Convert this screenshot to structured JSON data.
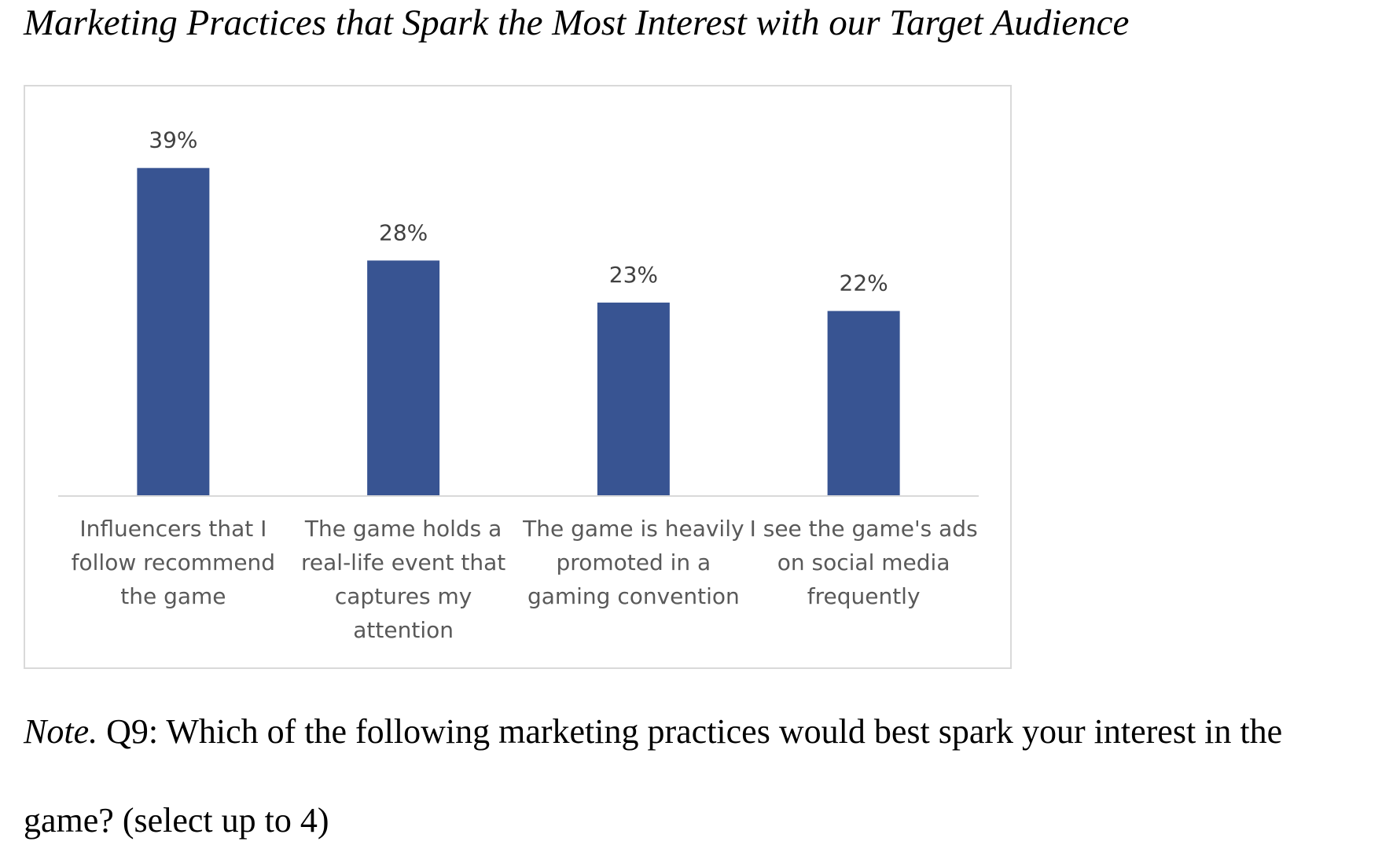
{
  "figure": {
    "title": "Marketing Practices that Spark the Most Interest with our Target Audience",
    "note_label": "Note.",
    "note_text_line1": " Q9: Which of the following marketing practices would best spark your interest in the",
    "note_text_line2": "game? (select up to 4)"
  },
  "chart_data": {
    "type": "bar",
    "title": "",
    "xlabel": "",
    "ylabel": "",
    "categories": [
      [
        "Influencers that I",
        "follow recommend",
        "the game"
      ],
      [
        "The game holds a",
        "real-life event that",
        "captures my",
        "attention"
      ],
      [
        "The game is heavily",
        "promoted in a",
        "gaming convention"
      ],
      [
        "I see the game's ads",
        "on social media",
        "frequently"
      ]
    ],
    "values": [
      39,
      28,
      23,
      22
    ],
    "value_labels": [
      "39%",
      "28%",
      "23%",
      "22%"
    ],
    "ylim": [
      0,
      42
    ],
    "grid": false,
    "bar_color": "#385492"
  }
}
